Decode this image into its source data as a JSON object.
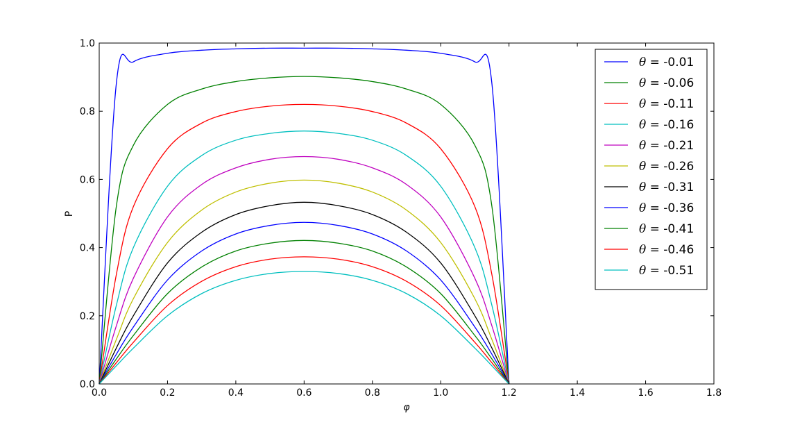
{
  "chart_data": {
    "type": "line",
    "title": "",
    "xlabel": "φ",
    "ylabel": "P",
    "xlim": [
      0.0,
      1.8
    ],
    "ylim": [
      0.0,
      1.0
    ],
    "xticks": [
      "0.0",
      "0.2",
      "0.4",
      "0.6",
      "0.8",
      "1.0",
      "1.2",
      "1.4",
      "1.6",
      "1.8"
    ],
    "yticks": [
      "0.0",
      "0.2",
      "0.4",
      "0.6",
      "0.8",
      "1.0"
    ],
    "grid": false,
    "legend_position": "top-right",
    "x": [
      0.0,
      0.05,
      0.1,
      0.2,
      0.3,
      0.4,
      0.5,
      0.6,
      0.7,
      0.8,
      0.9,
      1.0,
      1.1,
      1.15,
      1.2
    ],
    "series": [
      {
        "name": "θ = -0.01",
        "label_prefix": "θ = ",
        "label_value": "-0.01",
        "color": "#0000ff",
        "values": [
          0.0,
          0.88,
          0.945,
          0.97,
          0.979,
          0.983,
          0.985,
          0.985,
          0.985,
          0.983,
          0.979,
          0.97,
          0.945,
          0.88,
          0.0
        ]
      },
      {
        "name": "θ = -0.06",
        "label_prefix": "θ = ",
        "label_value": "-0.06",
        "color": "#008000",
        "values": [
          0.0,
          0.52,
          0.7,
          0.82,
          0.865,
          0.887,
          0.898,
          0.902,
          0.898,
          0.887,
          0.865,
          0.82,
          0.7,
          0.52,
          0.0
        ]
      },
      {
        "name": "θ = -0.11",
        "label_prefix": "θ = ",
        "label_value": "-0.11",
        "color": "#ff0000",
        "values": [
          0.0,
          0.32,
          0.52,
          0.69,
          0.765,
          0.799,
          0.815,
          0.82,
          0.815,
          0.799,
          0.765,
          0.69,
          0.52,
          0.32,
          0.0
        ]
      },
      {
        "name": "θ = -0.16",
        "label_prefix": "θ = ",
        "label_value": "-0.16",
        "color": "#00bfbf",
        "values": [
          0.0,
          0.23,
          0.4,
          0.58,
          0.67,
          0.715,
          0.735,
          0.742,
          0.735,
          0.715,
          0.67,
          0.58,
          0.4,
          0.23,
          0.0
        ]
      },
      {
        "name": "θ = -0.21",
        "label_prefix": "θ = ",
        "label_value": "-0.21",
        "color": "#bf00bf",
        "values": [
          0.0,
          0.17,
          0.31,
          0.49,
          0.585,
          0.634,
          0.659,
          0.667,
          0.659,
          0.634,
          0.585,
          0.49,
          0.31,
          0.17,
          0.0
        ]
      },
      {
        "name": "θ = -0.26",
        "label_prefix": "θ = ",
        "label_value": "-0.26",
        "color": "#bfbf00",
        "values": [
          0.0,
          0.13,
          0.25,
          0.415,
          0.51,
          0.563,
          0.589,
          0.598,
          0.589,
          0.563,
          0.51,
          0.415,
          0.25,
          0.13,
          0.0
        ]
      },
      {
        "name": "θ = -0.31",
        "label_prefix": "θ = ",
        "label_value": "-0.31",
        "color": "#000000",
        "values": [
          0.0,
          0.105,
          0.2,
          0.355,
          0.445,
          0.497,
          0.523,
          0.533,
          0.523,
          0.497,
          0.445,
          0.355,
          0.2,
          0.105,
          0.0
        ]
      },
      {
        "name": "θ = -0.36",
        "label_prefix": "θ = ",
        "label_value": "-0.36",
        "color": "#0000ff",
        "values": [
          0.0,
          0.087,
          0.167,
          0.305,
          0.39,
          0.44,
          0.465,
          0.474,
          0.465,
          0.44,
          0.39,
          0.305,
          0.167,
          0.087,
          0.0
        ]
      },
      {
        "name": "θ = -0.41",
        "label_prefix": "θ = ",
        "label_value": "-0.41",
        "color": "#008000",
        "values": [
          0.0,
          0.073,
          0.142,
          0.265,
          0.343,
          0.39,
          0.413,
          0.421,
          0.413,
          0.39,
          0.343,
          0.265,
          0.142,
          0.073,
          0.0
        ]
      },
      {
        "name": "θ = -0.46",
        "label_prefix": "θ = ",
        "label_value": "-0.46",
        "color": "#ff0000",
        "values": [
          0.0,
          0.062,
          0.122,
          0.23,
          0.301,
          0.344,
          0.366,
          0.373,
          0.366,
          0.344,
          0.301,
          0.23,
          0.122,
          0.062,
          0.0
        ]
      },
      {
        "name": "θ = -0.51",
        "label_prefix": "θ = ",
        "label_value": "-0.51",
        "color": "#00bfbf",
        "values": [
          0.0,
          0.053,
          0.105,
          0.2,
          0.265,
          0.304,
          0.324,
          0.33,
          0.324,
          0.304,
          0.265,
          0.2,
          0.105,
          0.053,
          0.0
        ]
      }
    ]
  }
}
